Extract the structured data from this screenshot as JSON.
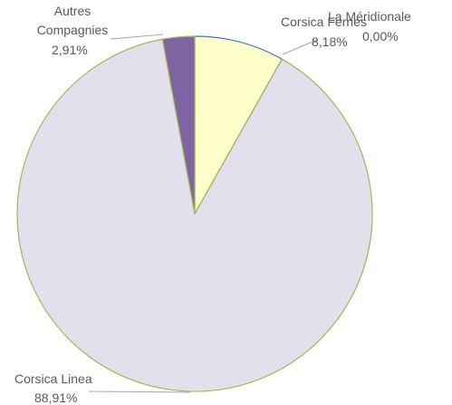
{
  "chart_data": {
    "type": "pie",
    "categories": [
      "Corsica Ferries",
      "La Méridionale",
      "Corsica Linea",
      "Autres Compagnies"
    ],
    "values": [
      8.18,
      0.0,
      88.91,
      2.91
    ],
    "value_labels": [
      "8,18%",
      "0,00%",
      "88,91%",
      "2,91%"
    ],
    "colors": [
      "#ffffcc",
      "#f4d7d6",
      "#e4dfec",
      "#8064a2"
    ],
    "edge_colors": [
      "#4472c4",
      "#c0504d",
      "#9bbb59",
      "#9bbb59"
    ]
  }
}
